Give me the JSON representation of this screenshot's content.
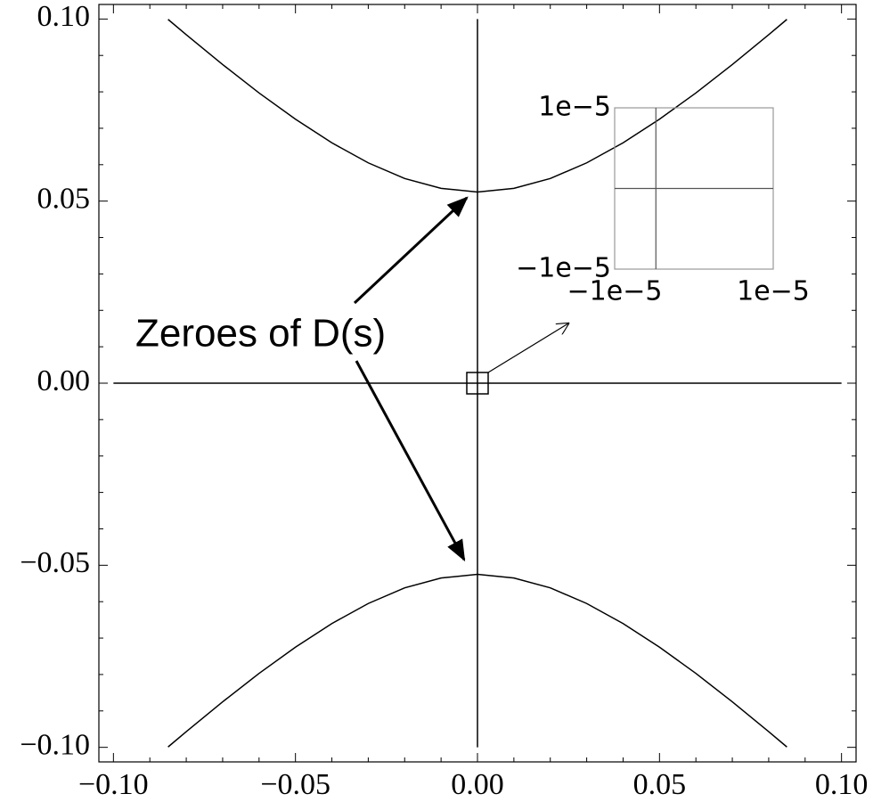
{
  "chart_data": [
    {
      "type": "line",
      "annotation": "Zeroes of D(s)",
      "xlim": [
        -0.104,
        0.104
      ],
      "ylim": [
        -0.104,
        0.104
      ],
      "xticks": [
        {
          "value": -0.1,
          "label": "−0.10"
        },
        {
          "value": -0.05,
          "label": "−0.05"
        },
        {
          "value": 0,
          "label": "0.00"
        },
        {
          "value": 0.05,
          "label": "0.05"
        },
        {
          "value": 0.1,
          "label": "0.10"
        }
      ],
      "yticks": [
        {
          "value": -0.1,
          "label": "−0.10"
        },
        {
          "value": -0.05,
          "label": "−0.05"
        },
        {
          "value": 0,
          "label": "0.00"
        },
        {
          "value": 0.05,
          "label": "0.05"
        },
        {
          "value": 0.1,
          "label": "0.10"
        }
      ],
      "minor_ticks": [
        -0.09,
        -0.08,
        -0.07,
        -0.06,
        -0.04,
        -0.03,
        -0.02,
        -0.01,
        0.01,
        0.02,
        0.03,
        0.04,
        0.06,
        0.07,
        0.08,
        0.09
      ],
      "color": "#000000",
      "series": [
        {
          "x": [
            -0.085,
            -0.08,
            -0.07,
            -0.06,
            -0.05,
            -0.04,
            -0.03,
            -0.02,
            -0.01,
            0,
            0.01,
            0.02,
            0.03,
            0.04,
            0.05,
            0.06,
            0.07,
            0.08,
            0.085
          ],
          "values": [
            0.0999,
            0.0957,
            0.0875,
            0.0797,
            0.0725,
            0.066,
            0.0605,
            0.0562,
            0.0535,
            0.0525,
            0.0535,
            0.0562,
            0.0605,
            0.066,
            0.0725,
            0.0797,
            0.0875,
            0.0957,
            0.0999
          ]
        },
        {
          "x": [
            -0.085,
            -0.08,
            -0.07,
            -0.06,
            -0.05,
            -0.04,
            -0.03,
            -0.02,
            -0.01,
            0,
            0.01,
            0.02,
            0.03,
            0.04,
            0.05,
            0.06,
            0.07,
            0.08,
            0.085
          ],
          "values": [
            -0.0999,
            -0.0957,
            -0.0875,
            -0.0797,
            -0.0725,
            -0.066,
            -0.0605,
            -0.0562,
            -0.0535,
            -0.0525,
            -0.0535,
            -0.0562,
            -0.0605,
            -0.066,
            -0.0725,
            -0.0797,
            -0.0875,
            -0.0957,
            -0.0999
          ]
        },
        {
          "x": [
            0,
            0
          ],
          "values": [
            -0.1,
            0.1
          ]
        },
        {
          "x": [
            -0.1,
            0.1
          ],
          "values": [
            0,
            0
          ]
        }
      ]
    },
    {
      "type": "line",
      "xlim": [
        -1e-05,
        1e-05
      ],
      "ylim": [
        -1e-05,
        1e-05
      ],
      "xticks": [
        {
          "value": -1e-05,
          "label": "−1e−5"
        },
        {
          "value": 1e-05,
          "label": "1e−5"
        }
      ],
      "yticks": [
        {
          "value": -1e-05,
          "label": "−1e−5"
        },
        {
          "value": 1e-05,
          "label": "1e−5"
        }
      ],
      "color": "#555555",
      "series": [
        {
          "x": [
            -1e-05,
            1e-05
          ],
          "values": [
            0,
            0
          ]
        },
        {
          "x": [
            -4.8e-06,
            -4.8e-06
          ],
          "values": [
            -1e-05,
            1e-05
          ]
        }
      ]
    }
  ]
}
